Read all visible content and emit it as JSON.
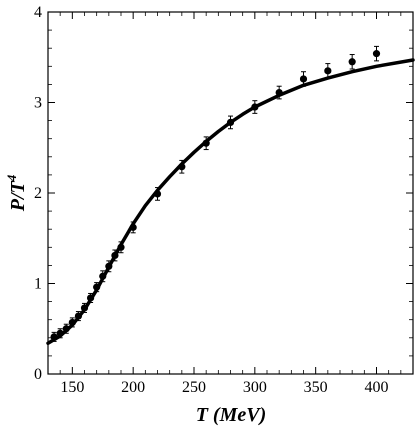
{
  "chart_data": {
    "type": "scatter",
    "title": "",
    "xlabel": "T (MeV)",
    "ylabel": "P/T4",
    "xlim": [
      130,
      430
    ],
    "ylim": [
      0,
      4
    ],
    "grid": false,
    "x_ticks": [
      "150",
      "200",
      "250",
      "300",
      "350",
      "400"
    ],
    "y_ticks": [
      "0",
      "1",
      "2",
      "3",
      "4"
    ],
    "x_tick_values": [
      150,
      200,
      250,
      300,
      350,
      400
    ],
    "y_tick_values": [
      0,
      1,
      2,
      3,
      4
    ],
    "series": [
      {
        "kind": "points",
        "x": [
          135,
          140,
          145,
          150,
          155,
          160,
          165,
          170,
          175,
          180,
          185,
          190,
          200,
          220,
          240,
          260,
          280,
          300,
          320,
          340,
          360,
          380,
          400
        ],
        "y": [
          0.41,
          0.45,
          0.5,
          0.57,
          0.64,
          0.73,
          0.84,
          0.96,
          1.08,
          1.19,
          1.31,
          1.4,
          1.62,
          1.99,
          2.29,
          2.55,
          2.78,
          2.95,
          3.11,
          3.26,
          3.35,
          3.45,
          3.54
        ],
        "err": [
          0.05,
          0.05,
          0.05,
          0.05,
          0.05,
          0.05,
          0.05,
          0.05,
          0.06,
          0.06,
          0.06,
          0.06,
          0.06,
          0.07,
          0.07,
          0.07,
          0.07,
          0.07,
          0.07,
          0.08,
          0.08,
          0.08,
          0.08
        ]
      },
      {
        "kind": "curve",
        "x": [
          130,
          140,
          150,
          160,
          170,
          180,
          190,
          200,
          210,
          220,
          230,
          240,
          250,
          260,
          270,
          280,
          290,
          300,
          320,
          340,
          360,
          380,
          400,
          430
        ],
        "y": [
          0.34,
          0.42,
          0.54,
          0.71,
          0.93,
          1.18,
          1.43,
          1.66,
          1.86,
          2.03,
          2.18,
          2.32,
          2.45,
          2.57,
          2.68,
          2.78,
          2.87,
          2.95,
          3.08,
          3.19,
          3.27,
          3.34,
          3.4,
          3.47
        ]
      }
    ]
  }
}
